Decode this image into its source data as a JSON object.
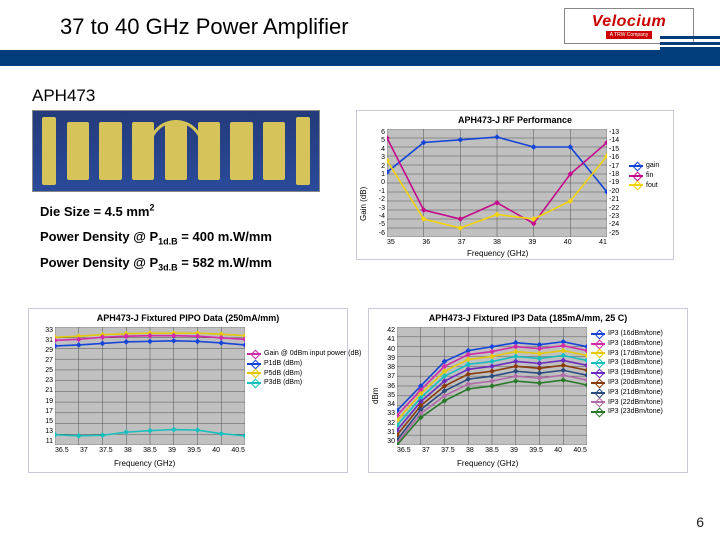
{
  "header": {
    "title": "37 to 40 GHz Power Amplifier",
    "logo_main": "Velocium",
    "logo_sub": "A TRW Company"
  },
  "aph": "APH473",
  "page_number": "6",
  "specs": {
    "die_size_label": "Die Size = 4.5 mm",
    "die_size_exp": "2",
    "pd1_pre": "Power Density @ P",
    "pd1_sub": "1d.B",
    "pd1_post": " = 400 m.W/mm",
    "pd3_pre": "Power Density @ P",
    "pd3_sub": "3d.B",
    "pd3_post": " = 582 m.W/mm"
  },
  "chart_rf": {
    "title": "APH473-J RF Performance",
    "xlabel": "Frequency (GHz)",
    "ylabel_left": "Gain (dB)",
    "xlim": [
      35,
      41
    ],
    "xticks": [
      35,
      36,
      37,
      38,
      39,
      40,
      41
    ],
    "yticks_left": [
      6,
      5,
      4,
      3,
      2,
      1,
      0,
      -1,
      -2,
      -3,
      -4,
      -5,
      -6
    ],
    "yticks_right": [
      -13,
      -14,
      -15,
      -16,
      -17,
      -18,
      -19,
      -20,
      -21,
      -22,
      -23,
      -24,
      -25
    ],
    "legend": [
      {
        "label": "gain",
        "color": "#1544d8"
      },
      {
        "label": "fin",
        "color": "#c40a8b"
      },
      {
        "label": "fout",
        "color": "#f2d30a"
      }
    ],
    "series": {
      "gain": {
        "color": "#1544d8",
        "pts": [
          [
            35,
            1.2
          ],
          [
            36,
            4.5
          ],
          [
            37,
            4.8
          ],
          [
            38,
            5.1
          ],
          [
            39,
            4.0
          ],
          [
            40,
            4.0
          ],
          [
            41,
            -1.0
          ]
        ]
      },
      "fin": {
        "color": "#c40a8b",
        "pts": [
          [
            35,
            5.0
          ],
          [
            36,
            -3.0
          ],
          [
            37,
            -4.0
          ],
          [
            38,
            -2.2
          ],
          [
            39,
            -4.5
          ],
          [
            40,
            1.0
          ],
          [
            41,
            4.5
          ]
        ]
      },
      "fout": {
        "color": "#f2d30a",
        "pts": [
          [
            35,
            2.5
          ],
          [
            36,
            -4.0
          ],
          [
            37,
            -5.0
          ],
          [
            38,
            -3.5
          ],
          [
            39,
            -4.0
          ],
          [
            40,
            -2.0
          ],
          [
            41,
            3.0
          ]
        ]
      }
    }
  },
  "chart_pipo": {
    "title": "APH473-J Fixtured PIPO Data (250mA/mm)",
    "xlabel": "Frequency (GHz)",
    "ylabel": "",
    "xlim": [
      36.5,
      40.5
    ],
    "xticks": [
      "36.5",
      "37",
      "37.5",
      "38",
      "38.5",
      "39",
      "39.5",
      "40",
      "40.5"
    ],
    "ylim": [
      10,
      33
    ],
    "yticks": [
      33,
      31,
      29,
      27,
      25,
      23,
      21,
      19,
      17,
      15,
      13,
      11
    ],
    "legend": [
      {
        "label": "Gain @ 0dBm input power (dB)",
        "color": "#d12ca8"
      },
      {
        "label": "P1dB (dBm)",
        "color": "#1544d8"
      },
      {
        "label": "P5dB (dBm)",
        "color": "#e3c90a"
      },
      {
        "label": "P3dB (dBm)",
        "color": "#17bfbf"
      }
    ],
    "series": {
      "p5": {
        "color": "#e3c90a",
        "pts": [
          [
            36.5,
            31.0
          ],
          [
            37,
            31.2
          ],
          [
            37.5,
            31.5
          ],
          [
            38,
            31.7
          ],
          [
            38.5,
            31.8
          ],
          [
            39,
            31.8
          ],
          [
            39.5,
            31.8
          ],
          [
            40,
            31.6
          ],
          [
            40.5,
            31.3
          ]
        ]
      },
      "gain": {
        "color": "#d12ca8",
        "pts": [
          [
            36.5,
            30.4
          ],
          [
            37,
            30.6
          ],
          [
            37.5,
            31.0
          ],
          [
            38,
            31.2
          ],
          [
            38.5,
            31.3
          ],
          [
            39,
            31.3
          ],
          [
            39.5,
            31.2
          ],
          [
            40,
            30.9
          ],
          [
            40.5,
            30.6
          ]
        ]
      },
      "p1": {
        "color": "#1544d8",
        "pts": [
          [
            36.5,
            29.3
          ],
          [
            37,
            29.5
          ],
          [
            37.5,
            29.8
          ],
          [
            38,
            30.1
          ],
          [
            38.5,
            30.2
          ],
          [
            39,
            30.3
          ],
          [
            39.5,
            30.2
          ],
          [
            40,
            29.9
          ],
          [
            40.5,
            29.5
          ]
        ]
      },
      "p3": {
        "color": "#17bfbf",
        "pts": [
          [
            36.5,
            12.0
          ],
          [
            37,
            11.8
          ],
          [
            37.5,
            11.9
          ],
          [
            38,
            12.5
          ],
          [
            38.5,
            12.8
          ],
          [
            39,
            13.0
          ],
          [
            39.5,
            12.9
          ],
          [
            40,
            12.2
          ],
          [
            40.5,
            11.8
          ]
        ]
      }
    }
  },
  "chart_ip3": {
    "title": "APH473-J Fixtured IP3 Data (185mA/mm, 25 C)",
    "xlabel": "Frequency (GHz)",
    "ylabel": "dBm",
    "xlim": [
      36.5,
      40.5
    ],
    "xticks": [
      "36.5",
      "37",
      "37.5",
      "38",
      "38.5",
      "39",
      "39.5",
      "40",
      "40.5"
    ],
    "ylim": [
      30,
      42
    ],
    "yticks": [
      42,
      41,
      40,
      39,
      38,
      37,
      36,
      35,
      34,
      33,
      32,
      31,
      30
    ],
    "legend": [
      {
        "label": "IP3 (16dBm/tone)",
        "color": "#1544d8"
      },
      {
        "label": "IP3 (18dBm/tone)",
        "color": "#d12ca8"
      },
      {
        "label": "IP3 (17dBm/tone)",
        "color": "#e3c90a"
      },
      {
        "label": "IP3 (18dBm/tone)",
        "color": "#17bfbf"
      },
      {
        "label": "IP3 (19dBm/tone)",
        "color": "#6b2bbf"
      },
      {
        "label": "IP3 (20dBm/tone)",
        "color": "#8a3b0a"
      },
      {
        "label": "IP3 (21dBm/tone)",
        "color": "#2b4b7f"
      },
      {
        "label": "IP3 (22dBm/tone)",
        "color": "#b06ba8"
      },
      {
        "label": "IP3 (23dBm/tone)",
        "color": "#2a7a2a"
      }
    ],
    "series": {
      "s1": {
        "color": "#1544d8",
        "pts": [
          [
            36.5,
            33.5
          ],
          [
            37,
            36.0
          ],
          [
            37.5,
            38.5
          ],
          [
            38,
            39.6
          ],
          [
            38.5,
            40.0
          ],
          [
            39,
            40.4
          ],
          [
            39.5,
            40.2
          ],
          [
            40,
            40.5
          ],
          [
            40.5,
            40.0
          ]
        ]
      },
      "s2": {
        "color": "#d12ca8",
        "pts": [
          [
            36.5,
            33.0
          ],
          [
            37,
            35.6
          ],
          [
            37.5,
            38.0
          ],
          [
            38,
            39.2
          ],
          [
            38.5,
            39.5
          ],
          [
            39,
            40.0
          ],
          [
            39.5,
            39.8
          ],
          [
            40,
            40.1
          ],
          [
            40.5,
            39.6
          ]
        ]
      },
      "s3": {
        "color": "#e3c90a",
        "pts": [
          [
            36.5,
            32.5
          ],
          [
            37,
            35.2
          ],
          [
            37.5,
            37.5
          ],
          [
            38,
            38.7
          ],
          [
            38.5,
            39.0
          ],
          [
            39,
            39.5
          ],
          [
            39.5,
            39.3
          ],
          [
            40,
            39.6
          ],
          [
            40.5,
            39.1
          ]
        ]
      },
      "s4": {
        "color": "#17bfbf",
        "pts": [
          [
            36.5,
            32.0
          ],
          [
            37,
            34.8
          ],
          [
            37.5,
            37.0
          ],
          [
            38,
            38.2
          ],
          [
            38.5,
            38.5
          ],
          [
            39,
            39.0
          ],
          [
            39.5,
            38.8
          ],
          [
            40,
            39.1
          ],
          [
            40.5,
            38.6
          ]
        ]
      },
      "s5": {
        "color": "#6b2bbf",
        "pts": [
          [
            36.5,
            31.5
          ],
          [
            37,
            34.4
          ],
          [
            37.5,
            36.5
          ],
          [
            38,
            37.7
          ],
          [
            38.5,
            38.0
          ],
          [
            39,
            38.5
          ],
          [
            39.5,
            38.3
          ],
          [
            40,
            38.6
          ],
          [
            40.5,
            38.1
          ]
        ]
      },
      "s6": {
        "color": "#8a3b0a",
        "pts": [
          [
            36.5,
            31.0
          ],
          [
            37,
            34.0
          ],
          [
            37.5,
            36.0
          ],
          [
            38,
            37.2
          ],
          [
            38.5,
            37.5
          ],
          [
            39,
            38.0
          ],
          [
            39.5,
            37.8
          ],
          [
            40,
            38.1
          ],
          [
            40.5,
            37.6
          ]
        ]
      },
      "s7": {
        "color": "#2b4b7f",
        "pts": [
          [
            36.5,
            30.5
          ],
          [
            37,
            33.6
          ],
          [
            37.5,
            35.5
          ],
          [
            38,
            36.7
          ],
          [
            38.5,
            37.0
          ],
          [
            39,
            37.5
          ],
          [
            39.5,
            37.3
          ],
          [
            40,
            37.6
          ],
          [
            40.5,
            37.1
          ]
        ]
      },
      "s8": {
        "color": "#b06ba8",
        "pts": [
          [
            36.5,
            30.2
          ],
          [
            37,
            33.2
          ],
          [
            37.5,
            35.0
          ],
          [
            38,
            36.2
          ],
          [
            38.5,
            36.5
          ],
          [
            39,
            37.0
          ],
          [
            39.5,
            36.8
          ],
          [
            40,
            37.1
          ],
          [
            40.5,
            36.6
          ]
        ]
      },
      "s9": {
        "color": "#2a7a2a",
        "pts": [
          [
            36.5,
            30.0
          ],
          [
            37,
            32.8
          ],
          [
            37.5,
            34.5
          ],
          [
            38,
            35.7
          ],
          [
            38.5,
            36.0
          ],
          [
            39,
            36.5
          ],
          [
            39.5,
            36.3
          ],
          [
            40,
            36.6
          ],
          [
            40.5,
            36.1
          ]
        ]
      }
    }
  }
}
